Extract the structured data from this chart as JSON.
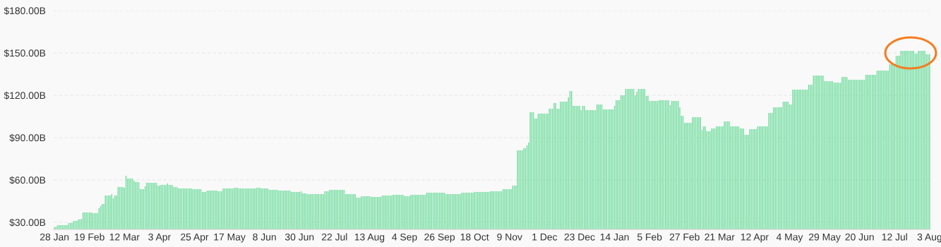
{
  "chart_data": {
    "type": "bar",
    "color": "#6edc9c",
    "grid": "y",
    "ylim": [
      25,
      180
    ],
    "yticks": [
      {
        "value": 30,
        "label": "$30.00B"
      },
      {
        "value": 60,
        "label": "$60.00B"
      },
      {
        "value": 90,
        "label": "$90.00B"
      },
      {
        "value": 120,
        "label": "$120.00B"
      },
      {
        "value": 150,
        "label": "$150.00B"
      },
      {
        "value": 180,
        "label": "$180.00B"
      }
    ],
    "categories": [
      "28 Jan",
      null,
      null,
      null,
      null,
      null,
      null,
      null,
      null,
      null,
      null,
      null,
      null,
      null,
      null,
      null,
      null,
      null,
      null,
      null,
      null,
      null,
      "19 Feb",
      null,
      null,
      null,
      null,
      null,
      null,
      null,
      null,
      null,
      null,
      null,
      null,
      null,
      null,
      null,
      null,
      null,
      null,
      null,
      null,
      null,
      "12 Mar",
      null,
      null,
      null,
      null,
      null,
      null,
      null,
      null,
      null,
      null,
      null,
      null,
      null,
      null,
      null,
      null,
      null,
      null,
      null,
      null,
      null,
      "3 Apr",
      null,
      null,
      null,
      null,
      null,
      null,
      null,
      null,
      null,
      null,
      null,
      null,
      null,
      null,
      null,
      null,
      null,
      null,
      null,
      null,
      null,
      "25 Apr",
      null,
      null,
      null,
      null,
      null,
      null,
      null,
      null,
      null,
      null,
      null,
      null,
      null,
      null,
      null,
      null,
      null,
      null,
      null,
      null,
      null,
      "17 May",
      null,
      null,
      null,
      null,
      null,
      null,
      null,
      null,
      null,
      null,
      null,
      null,
      null,
      null,
      null,
      null,
      null,
      null,
      null,
      null,
      null,
      "8 Jun",
      null,
      null,
      null,
      null,
      null,
      null,
      null,
      null,
      null,
      null,
      null,
      null,
      null,
      null,
      null,
      null,
      null,
      null,
      null,
      null,
      null,
      "30 Jun",
      null,
      null,
      null,
      null,
      null,
      null,
      null,
      null,
      null,
      null,
      null,
      null,
      null,
      null,
      null,
      null,
      null,
      null,
      null,
      null,
      null,
      "22 Jul",
      null,
      null,
      null,
      null,
      null,
      null,
      null,
      null,
      null,
      null,
      null,
      null,
      null,
      null,
      null,
      null,
      null,
      null,
      null,
      null,
      null,
      "13 Aug",
      null,
      null,
      null,
      null,
      null,
      null,
      null,
      null,
      null,
      null,
      null,
      null,
      null,
      null,
      null,
      null,
      null,
      null,
      null,
      null,
      null,
      "4 Sep",
      null,
      null,
      null,
      null,
      null,
      null,
      null,
      null,
      null,
      null,
      null,
      null,
      null,
      null,
      null,
      null,
      null,
      null,
      null,
      null,
      null,
      "26 Sep",
      null,
      null,
      null,
      null,
      null,
      null,
      null,
      null,
      null,
      null,
      null,
      null,
      null,
      null,
      null,
      null,
      null,
      null,
      null,
      null,
      null,
      "18 Oct",
      null,
      null,
      null,
      null,
      null,
      null,
      null,
      null,
      null,
      null,
      null,
      null,
      null,
      null,
      null,
      null,
      null,
      null,
      null,
      null,
      null,
      "9 Nov",
      null,
      null,
      null,
      null,
      null,
      null,
      null,
      null,
      null,
      null,
      null,
      null,
      null,
      null,
      null,
      null,
      null,
      null,
      null,
      null,
      null,
      "1 Dec",
      null,
      null,
      null,
      null,
      null,
      null,
      null,
      null,
      null,
      null,
      null,
      null,
      null,
      null,
      null,
      null,
      null,
      null,
      null,
      null,
      null,
      "23 Dec",
      null,
      null,
      null,
      null,
      null,
      null,
      null,
      null,
      null,
      null,
      null,
      null,
      null,
      null,
      null,
      null,
      null,
      null,
      null,
      null,
      null,
      "14 Jan",
      null,
      null,
      null,
      null,
      null,
      null,
      null,
      null,
      null,
      null,
      null,
      null,
      null,
      null,
      null,
      null,
      null,
      null,
      null,
      null,
      null,
      "5 Feb",
      null,
      null,
      null,
      null,
      null,
      null,
      null,
      null,
      null,
      null,
      null,
      null,
      null,
      null,
      null,
      null,
      null,
      null,
      null,
      null,
      null,
      "27 Feb",
      null,
      null,
      null,
      null,
      null,
      null,
      null,
      null,
      null,
      null,
      null,
      null,
      null,
      null,
      null,
      null,
      null,
      null,
      null,
      null,
      null,
      "21 Mar",
      null,
      null,
      null,
      null,
      null,
      null,
      null,
      null,
      null,
      null,
      null,
      null,
      null,
      null,
      null,
      null,
      null,
      null,
      null,
      null,
      null,
      "12 Apr",
      null,
      null,
      null,
      null,
      null,
      null,
      null,
      null,
      null,
      null,
      null,
      null,
      null,
      null,
      null,
      null,
      null,
      null,
      null,
      null,
      null,
      "4 May",
      null,
      null,
      null,
      null,
      null,
      null,
      null,
      null,
      null,
      null,
      null,
      null,
      null,
      null,
      null,
      null,
      null,
      null,
      null,
      null,
      null,
      "29 May",
      null,
      null,
      null,
      null,
      null,
      null,
      null,
      null,
      null,
      null,
      null,
      null,
      null,
      null,
      null,
      null,
      null,
      null,
      null,
      null,
      null,
      "20 Jun",
      null,
      null,
      null,
      null,
      null,
      null,
      null,
      null,
      null,
      null,
      null,
      null,
      null,
      null,
      null,
      null,
      null,
      null,
      null,
      null,
      null,
      "12 Jul",
      null,
      null,
      null,
      null,
      null,
      null,
      null,
      null,
      null,
      null,
      null,
      null,
      null,
      null,
      null,
      null,
      null,
      null,
      null,
      null,
      null,
      "3 Aug"
    ],
    "values": [
      26.5,
      27,
      28,
      28,
      28,
      28,
      28,
      28,
      28,
      29.5,
      29.5,
      29.5,
      31,
      31,
      31,
      32,
      32,
      32.5,
      37,
      37,
      37,
      37,
      37,
      37,
      36.5,
      36.5,
      36.5,
      36.5,
      40,
      41.5,
      43,
      43,
      49,
      49,
      49,
      49,
      50,
      47,
      49,
      49,
      55,
      55,
      55,
      55,
      54.5,
      63,
      61,
      61,
      61,
      61,
      59.5,
      58.5,
      58.5,
      58.5,
      53.5,
      53.5,
      53.5,
      55.5,
      58,
      58,
      58,
      58,
      58,
      58,
      58,
      56,
      56,
      56.5,
      56.5,
      56.5,
      56.5,
      57.5,
      56.5,
      56.5,
      56.5,
      55,
      55,
      55,
      54,
      54,
      54,
      54,
      54,
      54,
      54,
      54,
      54,
      53.5,
      53.5,
      53.5,
      53.5,
      53.5,
      53.5,
      51.5,
      51.5,
      51.5,
      52.5,
      52.5,
      52.5,
      52.5,
      52.5,
      52.5,
      52.5,
      52,
      52,
      52,
      54,
      54,
      54,
      54,
      54,
      54,
      54,
      54.5,
      54.5,
      54.5,
      54,
      54,
      54,
      54,
      54,
      54,
      54,
      54,
      54,
      54,
      54,
      54.5,
      54.5,
      54.5,
      54,
      54,
      54,
      54,
      54,
      53,
      53,
      53,
      53,
      53,
      53,
      52.5,
      52.5,
      52.5,
      52.5,
      52.5,
      52.5,
      52.5,
      52.5,
      51.5,
      51.5,
      51.5,
      51.5,
      51.5,
      51.5,
      52,
      50.5,
      50.5,
      50.5,
      50,
      50,
      50,
      50,
      50,
      50,
      50,
      50,
      50,
      50,
      50,
      52,
      52,
      52,
      53,
      53,
      53,
      53,
      53,
      53,
      53,
      53,
      53,
      53,
      50,
      50,
      50,
      50,
      50,
      50,
      50,
      47.5,
      47.5,
      47.5,
      48.5,
      48.5,
      48.5,
      48.5,
      48.5,
      48.5,
      48,
      48,
      48,
      48,
      48,
      48,
      48,
      49,
      49,
      49,
      49,
      49,
      49,
      49,
      49.5,
      49.5,
      49.5,
      49.5,
      49.5,
      49.5,
      49.5,
      48.5,
      48.5,
      48.5,
      48.5,
      49.5,
      49.5,
      49.5,
      49.5,
      49.5,
      49.5,
      49.5,
      49.5,
      49.5,
      49.5,
      51,
      51,
      51,
      51,
      51,
      51,
      51,
      51,
      51,
      51,
      51,
      51,
      50,
      50,
      50,
      50,
      50,
      50,
      50,
      50,
      50,
      50,
      51,
      51,
      51,
      51,
      51,
      51,
      51,
      51,
      51.5,
      51.5,
      51.5,
      51.5,
      51.5,
      51.5,
      51.5,
      51.5,
      51.5,
      51.5,
      52,
      52,
      52,
      52,
      52,
      52,
      52,
      52,
      53.5,
      53.5,
      53.5,
      53.5,
      53.5,
      53.5,
      56,
      56,
      56,
      81,
      81,
      81,
      81,
      82.5,
      82.5,
      84.5,
      86.5,
      108,
      108,
      108,
      103.5,
      103.5,
      107,
      107,
      107,
      107,
      107,
      107,
      107,
      110.5,
      110.5,
      110.5,
      114.5,
      114.5,
      110.5,
      110.5,
      115.5,
      115.5,
      115.5,
      115.5,
      115.5,
      118.5,
      123,
      123,
      112.5,
      112.5,
      112.5,
      112.5,
      112.5,
      109.5,
      112.5,
      112.5,
      109.5,
      109.5,
      109.5,
      109.5,
      109.5,
      109.5,
      109.5,
      113.5,
      113.5,
      113.5,
      113.5,
      110,
      110,
      110,
      110,
      110,
      110,
      110,
      112.5,
      116.5,
      116.5,
      116.5,
      120,
      120,
      120,
      124.5,
      124.5,
      124.5,
      124.5,
      124.5,
      124.5,
      120,
      122.5,
      124.5,
      124.5,
      124.5,
      124.5,
      124.5,
      119.5,
      119.5,
      116,
      116,
      116,
      116,
      116,
      116,
      116.5,
      116.5,
      116.5,
      116.5,
      116.5,
      116.5,
      116.5,
      113,
      116,
      116,
      116,
      116,
      116,
      111.5,
      105.5,
      105.5,
      100.5,
      100.5,
      100.5,
      100.5,
      100.5,
      104.5,
      104.5,
      104.5,
      104.5,
      104.5,
      104.5,
      95.5,
      98,
      98,
      94.5,
      94.5,
      94.5,
      96.5,
      96.5,
      96.5,
      98,
      98,
      98,
      98,
      98,
      101.5,
      101.5,
      101.5,
      101.5,
      98,
      98,
      98,
      98,
      98,
      98,
      96.5,
      96.5,
      96.5,
      92,
      92,
      92,
      96,
      96,
      96,
      96,
      96,
      98,
      98,
      98,
      98,
      98,
      98,
      98,
      107.5,
      107.5,
      107.5,
      111.5,
      111.5,
      111.5,
      111.5,
      111.5,
      111.5,
      115.5,
      115.5,
      115.5,
      115.5,
      113.5,
      113.5,
      124,
      124,
      124,
      124,
      124,
      124,
      124,
      124,
      124,
      124,
      127.5,
      127.5,
      127.5,
      134,
      134,
      134,
      134,
      134,
      134,
      134,
      130,
      130,
      130,
      130,
      130,
      130,
      129,
      129,
      129,
      129,
      129,
      133,
      133,
      133,
      133,
      131,
      131,
      131,
      131,
      131,
      131,
      131,
      131,
      131,
      131,
      131,
      134.5,
      134.5,
      134.5,
      134.5,
      134.5,
      134.5,
      134.5,
      137.5,
      137.5,
      137.5,
      137.5,
      137.5,
      137.5,
      137.5,
      137.5,
      142,
      142,
      142,
      142,
      148,
      148,
      148,
      151.5,
      151.5,
      151.5,
      151.5,
      151.5,
      151.5,
      151.5,
      151.5,
      151.5,
      149.5,
      149.5,
      151.5,
      151.5,
      151.5,
      151.5,
      151.5,
      149,
      149,
      149
    ]
  }
}
